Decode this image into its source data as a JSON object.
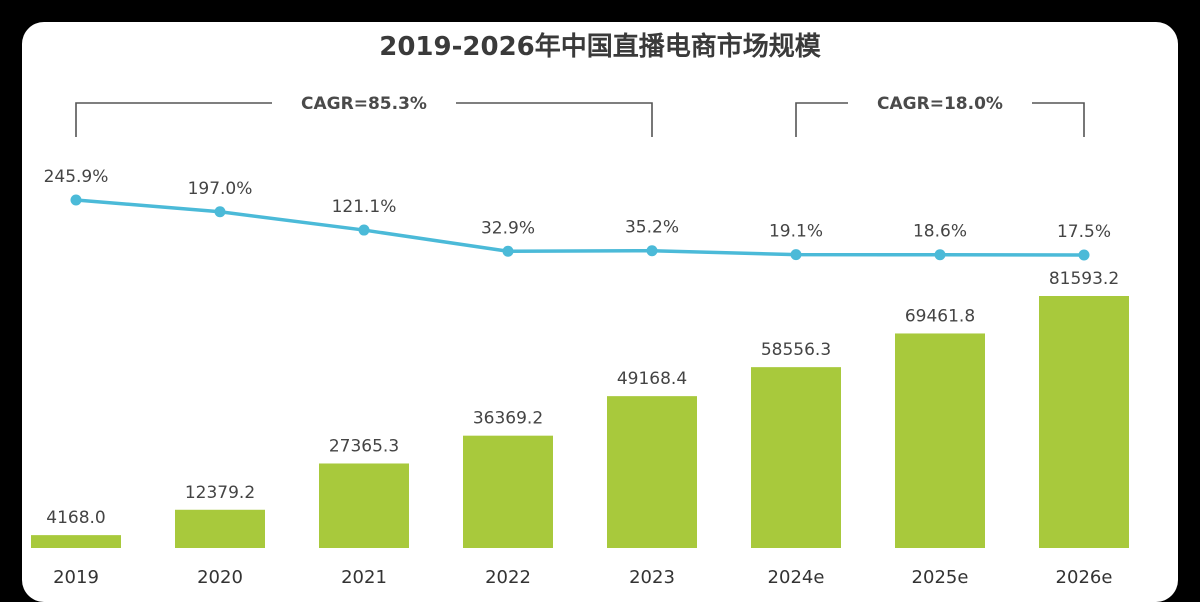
{
  "chart_data": {
    "type": "bar",
    "title": "2019-2026年中国直播电商市场规模",
    "categories": [
      "2019",
      "2020",
      "2021",
      "2022",
      "2023",
      "2024e",
      "2025e",
      "2026e"
    ],
    "series": [
      {
        "type": "bar",
        "values": [
          4168.0,
          12379.2,
          27365.3,
          36369.2,
          49168.4,
          58556.3,
          69461.8,
          81593.2
        ],
        "labels": [
          "4168.0",
          "12379.2",
          "27365.3",
          "36369.2",
          "49168.4",
          "58556.3",
          "69461.8",
          "81593.2"
        ],
        "color": "#a8c93c"
      },
      {
        "type": "line",
        "values": [
          245.9,
          197.0,
          121.1,
          32.9,
          35.2,
          19.1,
          18.6,
          17.5
        ],
        "labels": [
          "245.9%",
          "197.0%",
          "121.1%",
          "32.9%",
          "35.2%",
          "19.1%",
          "18.6%",
          "17.5%"
        ],
        "color": "#4bbad8"
      }
    ],
    "annotations": [
      {
        "text": "CAGR=85.3%",
        "from": "2019",
        "to": "2023"
      },
      {
        "text": "CAGR=18.0%",
        "from": "2024e",
        "to": "2026e"
      }
    ],
    "xlabel": "",
    "ylabel": "",
    "grid": false,
    "legend": "none"
  }
}
